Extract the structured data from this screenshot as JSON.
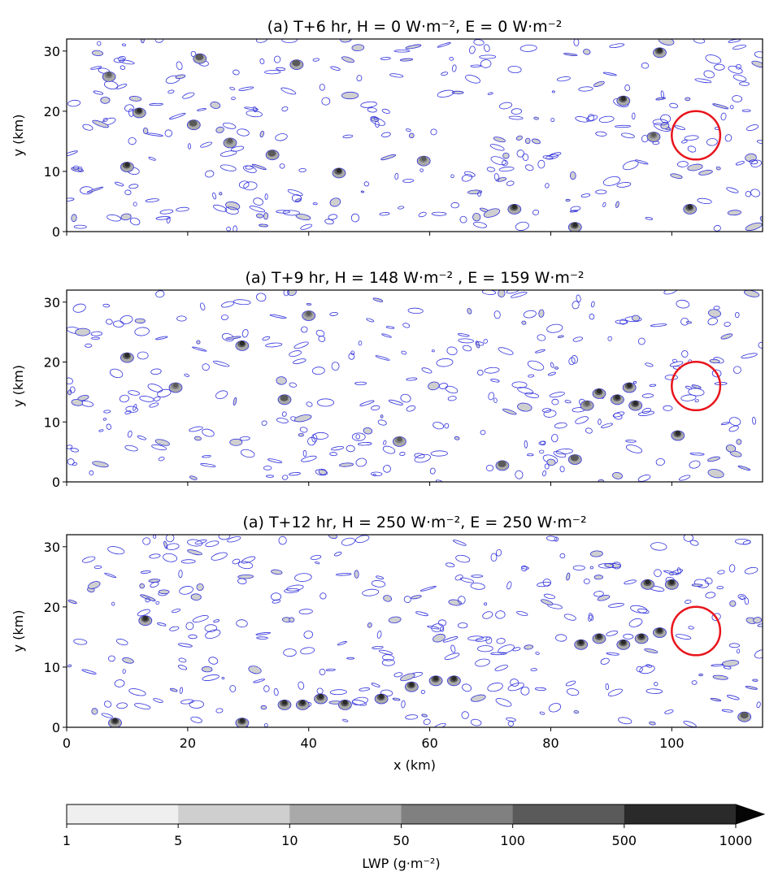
{
  "chart_data": [
    {
      "type": "heatmap",
      "title": "(a) T+6 hr,  H = 0 W·m⁻², E = 0 W·m⁻²",
      "xlabel": "",
      "ylabel": "y (km)",
      "xlim": [
        0,
        115
      ],
      "ylim": [
        0,
        32
      ],
      "yticks": [
        "0",
        "10",
        "20",
        "30"
      ],
      "annotations": [
        {
          "type": "circle",
          "color": "#e8141c",
          "center": [
            104,
            16
          ],
          "radius_km": 4
        }
      ],
      "clusters": [
        {
          "x": 10,
          "y": 11,
          "lwp": 900
        },
        {
          "x": 12,
          "y": 20,
          "lwp": 500
        },
        {
          "x": 21,
          "y": 18,
          "lwp": 400
        },
        {
          "x": 27,
          "y": 15,
          "lwp": 300
        },
        {
          "x": 34,
          "y": 13,
          "lwp": 400
        },
        {
          "x": 45,
          "y": 10,
          "lwp": 500
        },
        {
          "x": 59,
          "y": 12,
          "lwp": 300
        },
        {
          "x": 74,
          "y": 4,
          "lwp": 500
        },
        {
          "x": 84,
          "y": 1,
          "lwp": 600
        },
        {
          "x": 92,
          "y": 22,
          "lwp": 500
        },
        {
          "x": 98,
          "y": 30,
          "lwp": 600
        },
        {
          "x": 103,
          "y": 4,
          "lwp": 900
        },
        {
          "x": 97,
          "y": 16,
          "lwp": 300
        },
        {
          "x": 38,
          "y": 28,
          "lwp": 400
        },
        {
          "x": 22,
          "y": 29,
          "lwp": 400
        },
        {
          "x": 7,
          "y": 26,
          "lwp": 300
        }
      ]
    },
    {
      "type": "heatmap",
      "title": "(a)  T+9 hr, H = 148 W·m⁻² , E = 159 W·m⁻²",
      "xlabel": "",
      "ylabel": "y (km)",
      "xlim": [
        0,
        115
      ],
      "ylim": [
        0,
        32
      ],
      "yticks": [
        "0",
        "10",
        "20",
        "30"
      ],
      "annotations": [
        {
          "type": "circle",
          "color": "#e8141c",
          "center": [
            104,
            16
          ],
          "radius_km": 4
        }
      ],
      "clusters": [
        {
          "x": 10,
          "y": 21,
          "lwp": 900
        },
        {
          "x": 29,
          "y": 23,
          "lwp": 700
        },
        {
          "x": 55,
          "y": 7,
          "lwp": 300
        },
        {
          "x": 88,
          "y": 15,
          "lwp": 600
        },
        {
          "x": 91,
          "y": 14,
          "lwp": 900
        },
        {
          "x": 93,
          "y": 16,
          "lwp": 700
        },
        {
          "x": 94,
          "y": 13,
          "lwp": 800
        },
        {
          "x": 86,
          "y": 13,
          "lwp": 300
        },
        {
          "x": 101,
          "y": 8,
          "lwp": 500
        },
        {
          "x": 84,
          "y": 4,
          "lwp": 400
        },
        {
          "x": 40,
          "y": 28,
          "lwp": 300
        },
        {
          "x": 18,
          "y": 16,
          "lwp": 300
        },
        {
          "x": 36,
          "y": 14,
          "lwp": 400
        },
        {
          "x": 72,
          "y": 3,
          "lwp": 400
        }
      ]
    },
    {
      "type": "heatmap",
      "title": "(a)  T+12 hr, H = 250 W·m⁻², E = 250 W·m⁻²",
      "xlabel": "x (km)",
      "ylabel": "y (km)",
      "xlim": [
        0,
        115
      ],
      "ylim": [
        0,
        32
      ],
      "xticks": [
        "0",
        "20",
        "40",
        "60",
        "80",
        "100"
      ],
      "yticks": [
        "0",
        "10",
        "20",
        "30"
      ],
      "annotations": [
        {
          "type": "circle",
          "color": "#e8141c",
          "center": [
            104,
            16
          ],
          "radius_km": 4
        }
      ],
      "clusters": [
        {
          "x": 36,
          "y": 4,
          "lwp": 900
        },
        {
          "x": 39,
          "y": 4,
          "lwp": 900
        },
        {
          "x": 42,
          "y": 5,
          "lwp": 700
        },
        {
          "x": 46,
          "y": 4,
          "lwp": 600
        },
        {
          "x": 52,
          "y": 5,
          "lwp": 500
        },
        {
          "x": 57,
          "y": 7,
          "lwp": 500
        },
        {
          "x": 61,
          "y": 8,
          "lwp": 600
        },
        {
          "x": 64,
          "y": 8,
          "lwp": 500
        },
        {
          "x": 85,
          "y": 14,
          "lwp": 500
        },
        {
          "x": 88,
          "y": 15,
          "lwp": 700
        },
        {
          "x": 92,
          "y": 14,
          "lwp": 900
        },
        {
          "x": 95,
          "y": 15,
          "lwp": 900
        },
        {
          "x": 98,
          "y": 16,
          "lwp": 700
        },
        {
          "x": 96,
          "y": 24,
          "lwp": 700
        },
        {
          "x": 100,
          "y": 24,
          "lwp": 600
        },
        {
          "x": 29,
          "y": 1,
          "lwp": 800
        },
        {
          "x": 8,
          "y": 1,
          "lwp": 600
        },
        {
          "x": 13,
          "y": 18,
          "lwp": 500
        },
        {
          "x": 112,
          "y": 2,
          "lwp": 400
        }
      ]
    }
  ],
  "colorbar": {
    "label": "LWP (g·m⁻²)",
    "ticks": [
      "1",
      "5",
      "10",
      "50",
      "100",
      "500",
      "1000"
    ],
    "colors": [
      "#efefef",
      "#cfcfcf",
      "#a9a9a9",
      "#808080",
      "#5a5a5a",
      "#2a2a2a",
      "#050505"
    ],
    "extend": "max"
  },
  "colors": {
    "contour": "#3333dd",
    "circle": "#e8141c"
  }
}
